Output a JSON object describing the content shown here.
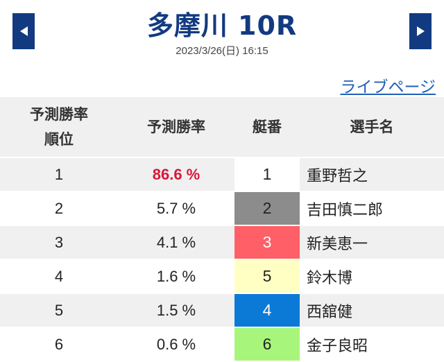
{
  "header": {
    "title": "多摩川 10R",
    "datetime": "2023/3/26(日) 16:15",
    "prev_icon": "triangle-left-icon",
    "next_icon": "triangle-right-icon",
    "nav_color": "#123a80"
  },
  "live_link": {
    "label": "ライブページ"
  },
  "table": {
    "headers": {
      "rank_line1": "予測勝率",
      "rank_line2": "順位",
      "probability": "予測勝率",
      "boat": "艇番",
      "racer": "選手名"
    },
    "rows": [
      {
        "rank": "1",
        "probability": "86.6 %",
        "boat": "1",
        "racer": "重野哲之",
        "boat_bg": "#ffffff",
        "boat_fg": "#222222",
        "highlight": true
      },
      {
        "rank": "2",
        "probability": "5.7 %",
        "boat": "2",
        "racer": "吉田慎二郎",
        "boat_bg": "#8c8c8c",
        "boat_fg": "#222222",
        "highlight": false
      },
      {
        "rank": "3",
        "probability": "4.1 %",
        "boat": "3",
        "racer": "新美恵一",
        "boat_bg": "#ff5f66",
        "boat_fg": "#ffffff",
        "highlight": false
      },
      {
        "rank": "4",
        "probability": "1.6 %",
        "boat": "5",
        "racer": "鈴木博",
        "boat_bg": "#ffffc4",
        "boat_fg": "#222222",
        "highlight": false
      },
      {
        "rank": "5",
        "probability": "1.5 %",
        "boat": "4",
        "racer": "西舘健",
        "boat_bg": "#0a7ad6",
        "boat_fg": "#ffffff",
        "highlight": false
      },
      {
        "rank": "6",
        "probability": "0.6 %",
        "boat": "6",
        "racer": "金子良昭",
        "boat_bg": "#a8f57c",
        "boat_fg": "#222222",
        "highlight": false
      }
    ],
    "shade_color": "#f0f0f0",
    "top_prob_color": "#d6173a"
  }
}
